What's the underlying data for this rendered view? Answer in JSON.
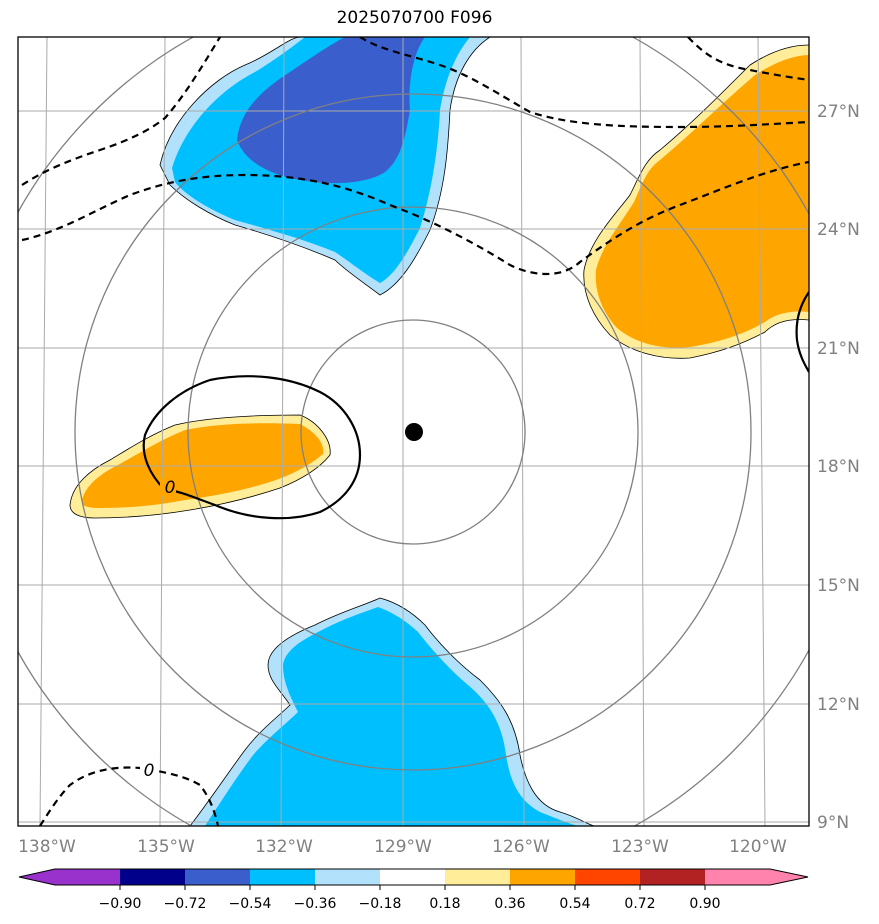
{
  "title": "2025070700 F096",
  "colors": {
    "dark_blue": "#3a5fcd",
    "cyan": "#00bfff",
    "light_blue": "#b2e1fb",
    "light_yellow": "#ffed99",
    "orange": "#ffa500",
    "range_ring": "#808080",
    "grid": "#aaaaaa",
    "center_marker": "#000000"
  },
  "chart_data": {
    "type": "heatmap",
    "title": "2025070700 F096",
    "map": {
      "lon_range": [
        -139,
        -120
      ],
      "lat_range": [
        8.9,
        28.5
      ],
      "center": {
        "lon": -129.2,
        "lat": 18.8
      },
      "range_rings": 4,
      "grid": true
    },
    "x_ticks": [
      "138°W",
      "135°W",
      "132°W",
      "129°W",
      "126°W",
      "123°W",
      "120°W"
    ],
    "y_ticks": [
      "27°N",
      "24°N",
      "21°N",
      "18°N",
      "15°N",
      "12°N",
      "9°N"
    ],
    "contour_labels": [
      "0",
      "0"
    ],
    "colorbar": {
      "ticks": [
        "−0.90",
        "−0.72",
        "−0.54",
        "−0.36",
        "−0.18",
        "0.18",
        "0.36",
        "0.54",
        "0.72",
        "0.90"
      ],
      "colors": [
        "#9932cc",
        "#00008b",
        "#3a5fcd",
        "#00bfff",
        "#b2e1fb",
        "#ffffff",
        "#ffed99",
        "#ffa500",
        "#ff4500",
        "#b22222",
        "#ff83ad"
      ]
    },
    "shaded_regions": [
      {
        "value_range": [
          -0.36,
          -0.18
        ],
        "color": "light-blue",
        "location": "north-central"
      },
      {
        "value_range": [
          -0.54,
          -0.36
        ],
        "color": "cyan",
        "location": "north-central"
      },
      {
        "value_range": [
          -0.72,
          -0.54
        ],
        "color": "blue",
        "location": "north-central"
      },
      {
        "value_range": [
          0.36,
          0.54
        ],
        "color": "orange",
        "location": "north-east"
      },
      {
        "value_range": [
          0.36,
          0.54
        ],
        "color": "orange",
        "location": "west"
      },
      {
        "value_range": [
          -0.54,
          -0.36
        ],
        "color": "cyan",
        "location": "south"
      }
    ]
  }
}
